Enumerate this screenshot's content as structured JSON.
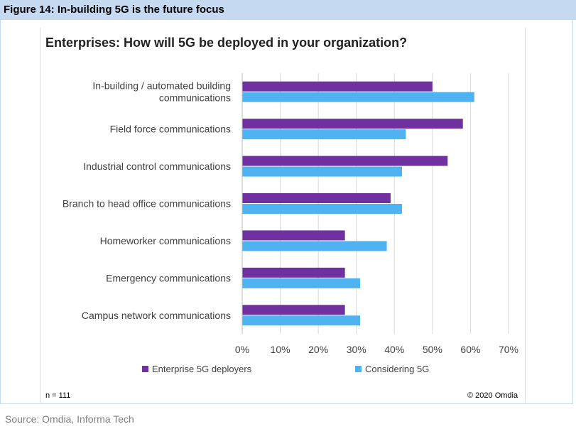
{
  "figure": {
    "title": "Figure 14: In-building 5G is the future focus",
    "source": "Source: Omdia, Informa Tech",
    "sample_size": "n = 111",
    "copyright": "© 2020 Omdia"
  },
  "colors": {
    "header_bg": "#c5d9f1",
    "series_1": "#7030a0",
    "series_2": "#4eb3f0"
  },
  "chart_data": {
    "type": "bar",
    "orientation": "horizontal",
    "title": "Enterprises: How will 5G be deployed in your organization?",
    "categories": [
      [
        "In-building / automated building",
        "communications"
      ],
      [
        "Field force communications"
      ],
      [
        "Industrial control communications"
      ],
      [
        "Branch to head office communications"
      ],
      [
        "Homeworker communications"
      ],
      [
        "Emergency communications"
      ],
      [
        "Campus network communications"
      ]
    ],
    "series": [
      {
        "name": "Enterprise 5G deployers",
        "color": "#7030a0",
        "values": [
          50,
          58,
          54,
          39,
          27,
          27,
          27
        ]
      },
      {
        "name": "Considering 5G",
        "color": "#4eb3f0",
        "values": [
          61,
          43,
          42,
          42,
          38,
          31,
          31
        ]
      }
    ],
    "xlim": [
      0,
      70
    ],
    "xticks": [
      "0%",
      "10%",
      "20%",
      "30%",
      "40%",
      "50%",
      "60%",
      "70%"
    ],
    "grid": true,
    "legend_position": "bottom"
  }
}
